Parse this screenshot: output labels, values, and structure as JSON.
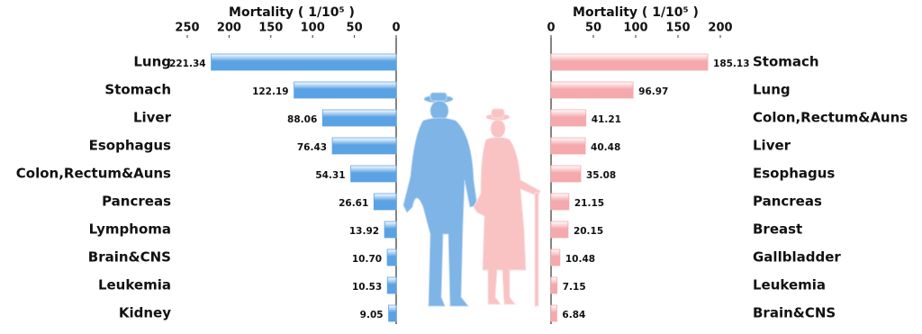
{
  "chart_data": [
    {
      "type": "bar",
      "orientation": "horizontal",
      "x_inverted": true,
      "xlabel": "Mortality ( 1/10⁵ )",
      "categories": [
        "Lung",
        "Stomach",
        "Liver",
        "Esophagus",
        "Colon,Rectum&Auns",
        "Pancreas",
        "Lymphoma",
        "Brain&CNS",
        "Leukemia",
        "Kidney"
      ],
      "values": [
        221.34,
        122.19,
        88.06,
        76.43,
        54.31,
        26.61,
        13.92,
        10.7,
        10.53,
        9.05
      ],
      "value_labels": [
        "221.34",
        "122.19",
        "88.06",
        "76.43",
        "54.31",
        "26.61",
        "13.92",
        "10.70",
        "10.53",
        "9.05"
      ],
      "color": "#5aa2e4",
      "xlim": [
        0,
        250
      ],
      "xticks": [
        0,
        50,
        100,
        150,
        200,
        250
      ]
    },
    {
      "type": "bar",
      "orientation": "horizontal",
      "x_inverted": false,
      "xlabel": "Mortality ( 1/10⁵ )",
      "categories": [
        "Stomach",
        "Lung",
        "Colon,Rectum&Auns",
        "Liver",
        "Esophagus",
        "Pancreas",
        "Breast",
        "Gallbladder",
        "Leukemia",
        "Brain&CNS"
      ],
      "values": [
        185.13,
        96.97,
        41.21,
        40.48,
        35.08,
        21.15,
        20.15,
        10.48,
        7.15,
        6.84
      ],
      "color": "#f5a9ac",
      "xlim": [
        0,
        200
      ],
      "xticks": [
        0,
        50,
        100,
        150,
        200
      ]
    }
  ]
}
